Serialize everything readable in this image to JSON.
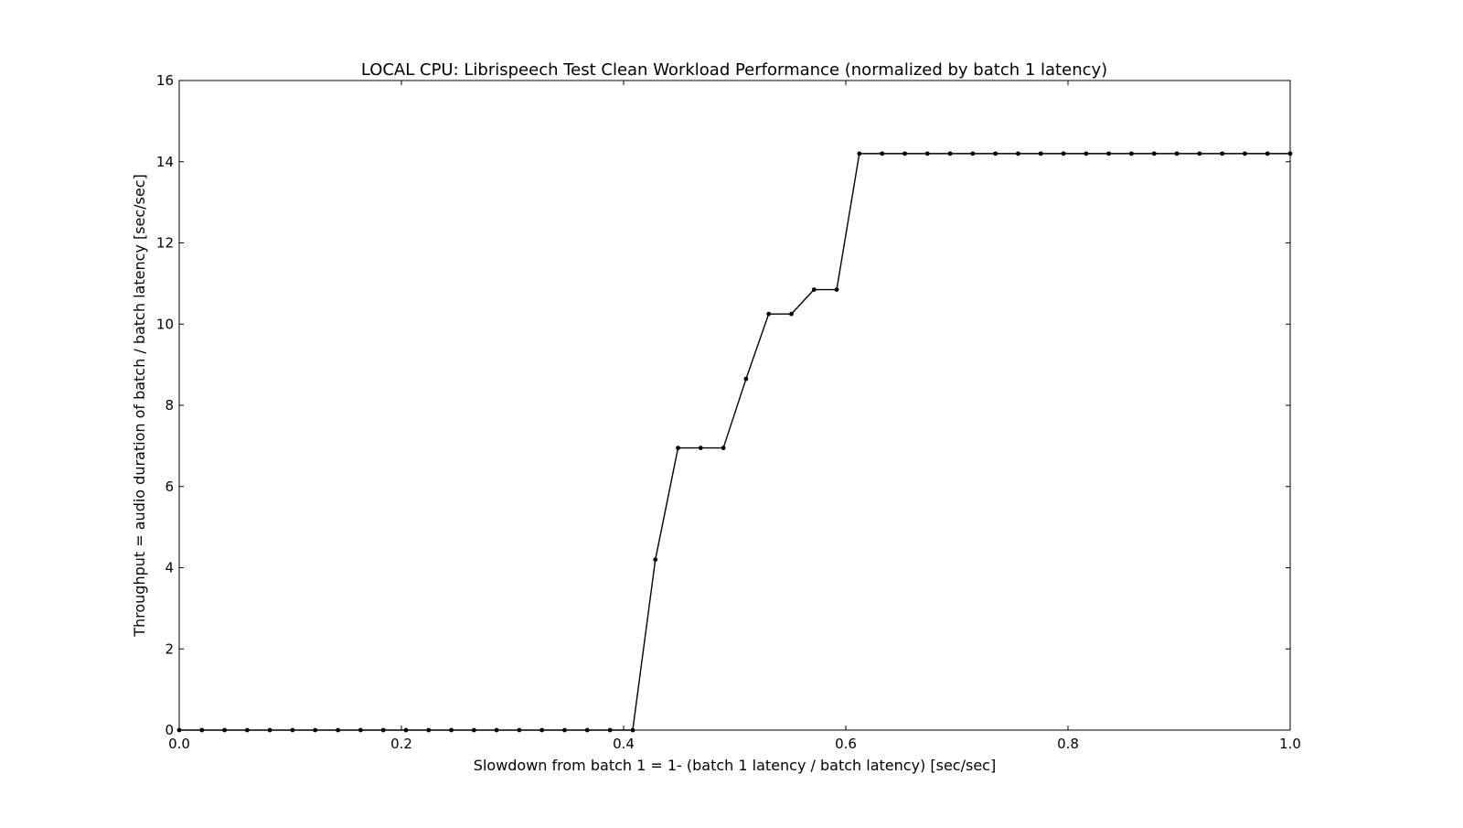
{
  "chart_data": {
    "type": "line",
    "title": "LOCAL CPU: Librispeech Test Clean Workload Performance (normalized by batch 1 latency)",
    "xlabel": "Slowdown from batch 1 = 1- (batch 1 latency / batch latency) [sec/sec]",
    "ylabel": "Throughput = audio duration of batch / batch latency [sec/sec]",
    "xlim": [
      0.0,
      1.0
    ],
    "ylim": [
      0,
      16
    ],
    "xticks": [
      "0.0",
      "0.2",
      "0.4",
      "0.6",
      "0.8",
      "1.0"
    ],
    "yticks": [
      "0",
      "2",
      "4",
      "6",
      "8",
      "10",
      "12",
      "14",
      "16"
    ],
    "grid": false,
    "line_color": "#000000",
    "marker": "dot",
    "series": [
      {
        "x": [
          0.0,
          0.0204,
          0.0408,
          0.0612,
          0.0816,
          0.102,
          0.1224,
          0.1429,
          0.1633,
          0.1837,
          0.2041,
          0.2245,
          0.2449,
          0.2653,
          0.2857,
          0.3061,
          0.3265,
          0.3469,
          0.3673,
          0.3878,
          0.4082,
          0.4286,
          0.449,
          0.4694,
          0.4898,
          0.5102,
          0.5306,
          0.551,
          0.5714,
          0.5918,
          0.6122,
          0.6327,
          0.6531,
          0.6735,
          0.6939,
          0.7143,
          0.7347,
          0.7551,
          0.7755,
          0.7959,
          0.8163,
          0.8367,
          0.8571,
          0.8776,
          0.898,
          0.9184,
          0.9388,
          0.9592,
          0.9796,
          1.0
        ],
        "y": [
          0,
          0,
          0,
          0,
          0,
          0,
          0,
          0,
          0,
          0,
          0,
          0,
          0,
          0,
          0,
          0,
          0,
          0,
          0,
          0,
          0,
          4.2,
          6.95,
          6.95,
          6.95,
          8.65,
          10.25,
          10.25,
          10.85,
          10.85,
          14.2,
          14.2,
          14.2,
          14.2,
          14.2,
          14.2,
          14.2,
          14.2,
          14.2,
          14.2,
          14.2,
          14.2,
          14.2,
          14.2,
          14.2,
          14.2,
          14.2,
          14.2,
          14.2,
          14.2
        ]
      }
    ]
  }
}
